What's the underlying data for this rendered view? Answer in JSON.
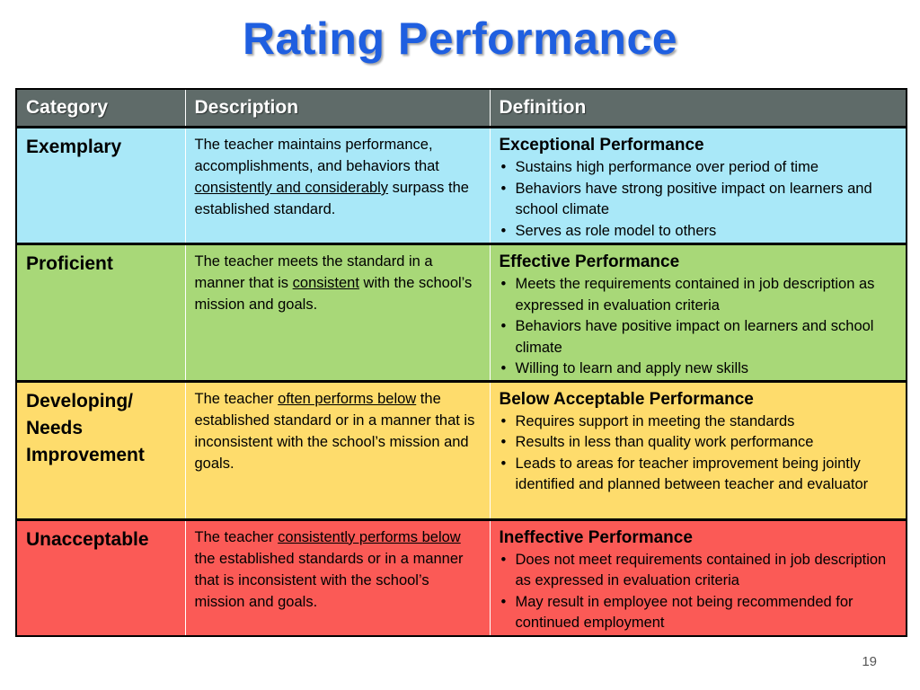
{
  "title": "Rating Performance",
  "page_number": "19",
  "table": {
    "headers": [
      "Category",
      "Description",
      "Definition"
    ],
    "rows": [
      {
        "category": "Exemplary",
        "bg": "#a9e8f8",
        "desc_parts": [
          {
            "t": "The teacher maintains performance, accomplishments, and behaviors that "
          },
          {
            "t": "consistently and considerably",
            "u": true
          },
          {
            "t": " surpass the established standard."
          }
        ],
        "def_title": "Exceptional Performance",
        "bullets": [
          "Sustains high performance over period of time",
          "Behaviors have strong positive impact on learners and school climate",
          "Serves as role model to others"
        ]
      },
      {
        "category": "Proficient",
        "bg": "#a8d878",
        "desc_parts": [
          {
            "t": "The teacher meets the standard in a manner that is "
          },
          {
            "t": "consistent",
            "u": true
          },
          {
            "t": " with the school’s mission and goals."
          }
        ],
        "def_title": "Effective Performance",
        "bullets": [
          "Meets the requirements contained in job description as expressed in evaluation criteria",
          "Behaviors have positive impact on learners and school climate",
          "Willing to learn and apply new skills"
        ]
      },
      {
        "category": "Developing/ Needs Improvement",
        "bg": "#fedc6c",
        "desc_parts": [
          {
            "t": "The teacher "
          },
          {
            "t": "often performs below",
            "u": true
          },
          {
            "t": " the established standard or in a manner that is inconsistent with the school’s mission and goals."
          }
        ],
        "def_title": "Below Acceptable Performance",
        "bullets": [
          "Requires support in meeting the standards",
          "Results in less than quality work performance",
          "Leads to areas for teacher improvement being jointly identified and planned between teacher and evaluator"
        ]
      },
      {
        "category": "Unacceptable",
        "bg": "#fb5a56",
        "desc_parts": [
          {
            "t": "The teacher "
          },
          {
            "t": "consistently performs below",
            "u": true
          },
          {
            "t": " the established standards or in a manner that is inconsistent with the school’s mission and goals."
          }
        ],
        "def_title": "Ineffective Performance",
        "bullets": [
          "Does not meet requirements contained in job description as expressed in evaluation criteria",
          "May result in employee not being recommended for continued employment"
        ]
      }
    ]
  }
}
